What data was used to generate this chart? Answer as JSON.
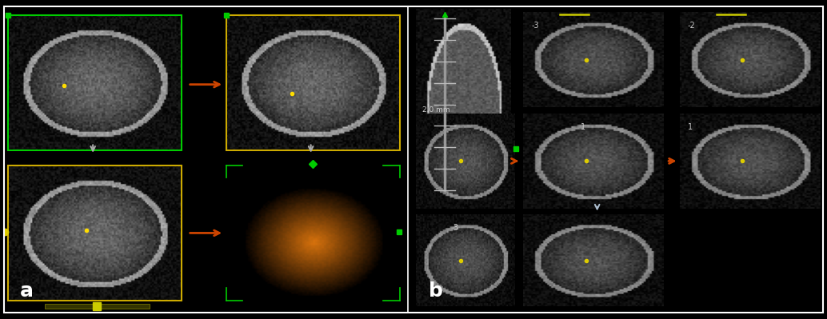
{
  "fig_width": 10.34,
  "fig_height": 3.99,
  "dpi": 100,
  "background_color": "#000000",
  "border_color": "#ffffff",
  "border_linewidth": 1.5,
  "panel_a_label": "a",
  "panel_b_label": "b",
  "label_fontsize": 18,
  "label_color": "#ffffff",
  "label_fontweight": "bold",
  "green_box_color": "#00cc00",
  "gold_box_color": "#ccaa00",
  "orange_arrow_color": "#cc4400",
  "tui_interval_text": "2.0 mm",
  "tui_labels_top": [
    "-3",
    "-2"
  ],
  "tui_labels_mid": [
    "1",
    "1"
  ],
  "tui_labels_bot": [
    "3"
  ],
  "3d_orange_color": "#c87020"
}
